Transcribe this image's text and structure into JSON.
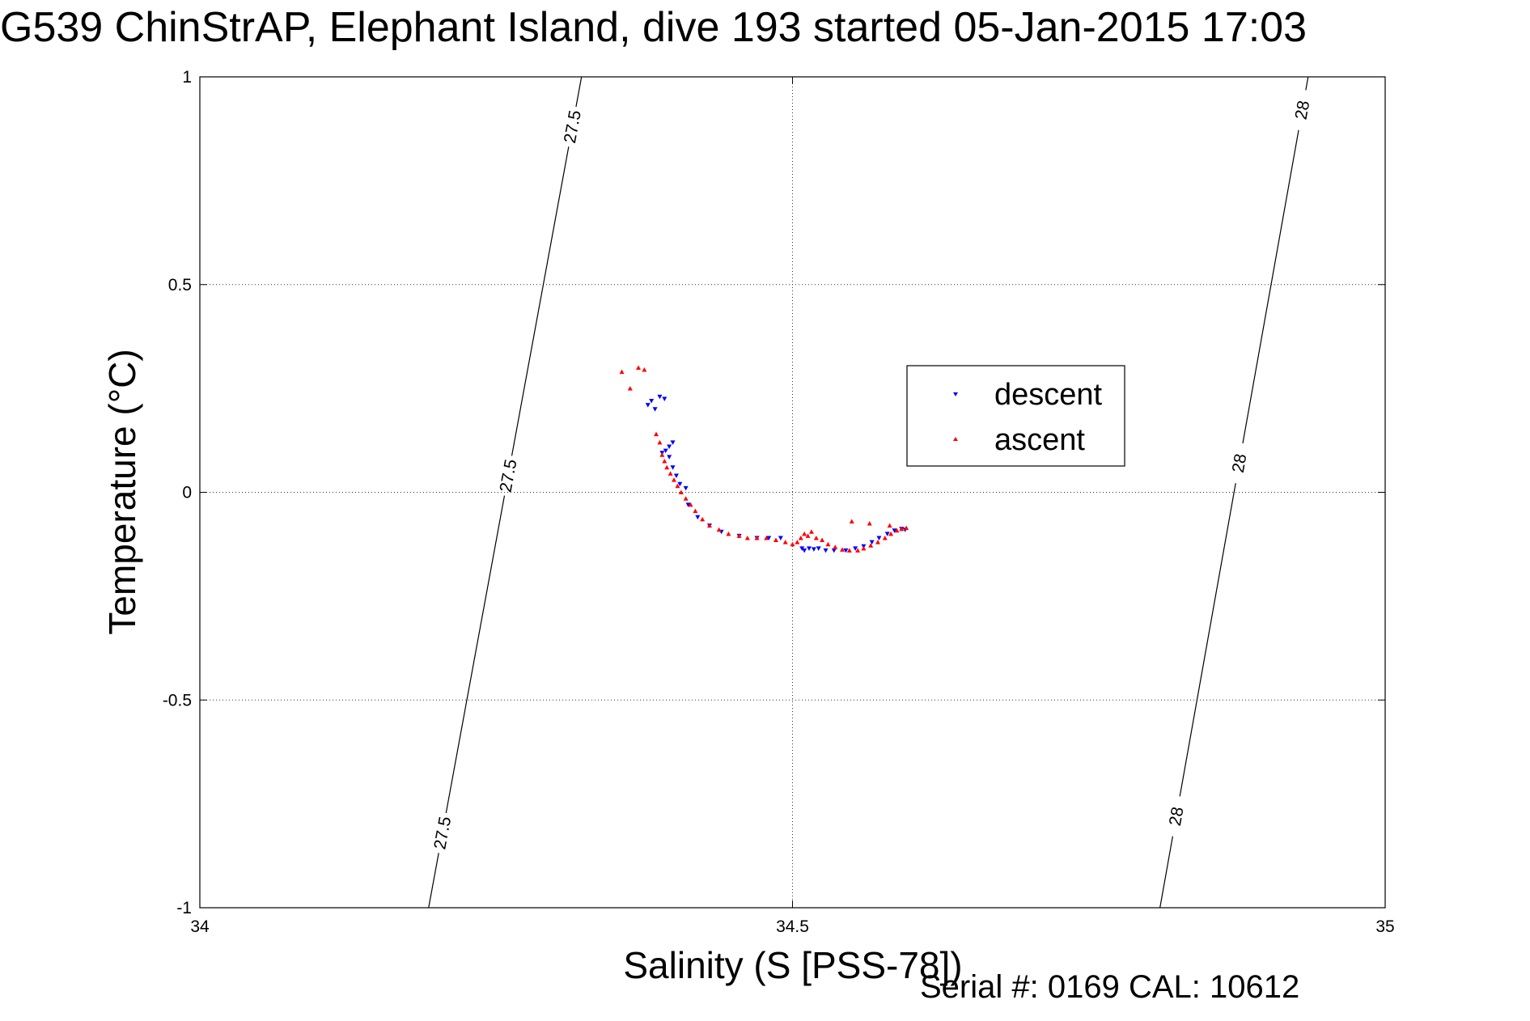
{
  "chart_data": {
    "type": "scatter",
    "title": "G539 ChinStrAP, Elephant Island, dive 193 started 05-Jan-2015 17:03",
    "xlabel": "Salinity (S [PSS-78])",
    "ylabel": "Temperature (°C)",
    "xlim": [
      34,
      35
    ],
    "ylim": [
      -1,
      1
    ],
    "x_ticks": [
      "34",
      "34.5",
      "35"
    ],
    "y_ticks": [
      "-1",
      "-0.5",
      "0",
      "0.5",
      "1"
    ],
    "grid": true,
    "legend_position": "top-right",
    "contours": [
      {
        "label": "27.5",
        "points": [
          [
            34.193,
            -1.0
          ],
          [
            34.322,
            1.0
          ]
        ],
        "label_positions": [
          [
            34.2,
            -0.82
          ],
          [
            34.25,
            0.04
          ],
          [
            34.31,
            0.88
          ]
        ]
      },
      {
        "label": "28",
        "points": [
          [
            34.81,
            -1.0
          ],
          [
            34.935,
            1.0
          ]
        ],
        "label_positions": [
          [
            34.82,
            -0.78
          ],
          [
            34.87,
            0.07
          ],
          [
            34.93,
            0.92
          ]
        ]
      }
    ],
    "series": [
      {
        "name": "descent",
        "color": "#0000ff",
        "marker": "triangle-down",
        "points": [
          [
            34.378,
            0.21
          ],
          [
            34.381,
            0.22
          ],
          [
            34.384,
            0.2
          ],
          [
            34.388,
            0.23
          ],
          [
            34.392,
            0.225
          ],
          [
            34.39,
            0.095
          ],
          [
            34.393,
            0.1
          ],
          [
            34.396,
            0.11
          ],
          [
            34.399,
            0.12
          ],
          [
            34.396,
            0.085
          ],
          [
            34.399,
            0.06
          ],
          [
            34.402,
            0.04
          ],
          [
            34.405,
            0.02
          ],
          [
            34.41,
            0.01
          ],
          [
            34.412,
            -0.03
          ],
          [
            34.42,
            -0.06
          ],
          [
            34.43,
            -0.08
          ],
          [
            34.44,
            -0.095
          ],
          [
            34.455,
            -0.105
          ],
          [
            34.47,
            -0.11
          ],
          [
            34.48,
            -0.11
          ],
          [
            34.49,
            -0.11
          ],
          [
            34.508,
            -0.135
          ],
          [
            34.51,
            -0.14
          ],
          [
            34.514,
            -0.135
          ],
          [
            34.518,
            -0.137
          ],
          [
            34.522,
            -0.135
          ],
          [
            34.528,
            -0.14
          ],
          [
            34.535,
            -0.14
          ],
          [
            34.545,
            -0.14
          ],
          [
            34.553,
            -0.135
          ],
          [
            34.56,
            -0.13
          ],
          [
            34.567,
            -0.12
          ],
          [
            34.573,
            -0.11
          ],
          [
            34.58,
            -0.1
          ],
          [
            34.586,
            -0.092
          ],
          [
            34.592,
            -0.088
          ],
          [
            34.595,
            -0.09
          ]
        ]
      },
      {
        "name": "ascent",
        "color": "#ff0000",
        "marker": "triangle-up",
        "points": [
          [
            34.356,
            0.29
          ],
          [
            34.37,
            0.3
          ],
          [
            34.375,
            0.295
          ],
          [
            34.363,
            0.25
          ],
          [
            34.385,
            0.14
          ],
          [
            34.388,
            0.12
          ],
          [
            34.39,
            0.09
          ],
          [
            34.392,
            0.075
          ],
          [
            34.394,
            0.06
          ],
          [
            34.397,
            0.045
          ],
          [
            34.4,
            0.03
          ],
          [
            34.403,
            0.015
          ],
          [
            34.406,
            0.0
          ],
          [
            34.41,
            -0.015
          ],
          [
            34.414,
            -0.03
          ],
          [
            34.418,
            -0.045
          ],
          [
            34.424,
            -0.065
          ],
          [
            34.43,
            -0.08
          ],
          [
            34.438,
            -0.09
          ],
          [
            34.446,
            -0.1
          ],
          [
            34.455,
            -0.105
          ],
          [
            34.462,
            -0.11
          ],
          [
            34.47,
            -0.11
          ],
          [
            34.478,
            -0.11
          ],
          [
            34.486,
            -0.115
          ],
          [
            34.494,
            -0.12
          ],
          [
            34.5,
            -0.125
          ],
          [
            34.504,
            -0.12
          ],
          [
            34.507,
            -0.11
          ],
          [
            34.51,
            -0.1
          ],
          [
            34.513,
            -0.105
          ],
          [
            34.516,
            -0.095
          ],
          [
            34.52,
            -0.11
          ],
          [
            34.525,
            -0.115
          ],
          [
            34.53,
            -0.125
          ],
          [
            34.536,
            -0.132
          ],
          [
            34.542,
            -0.138
          ],
          [
            34.548,
            -0.14
          ],
          [
            34.555,
            -0.14
          ],
          [
            34.56,
            -0.135
          ],
          [
            34.566,
            -0.128
          ],
          [
            34.572,
            -0.12
          ],
          [
            34.578,
            -0.11
          ],
          [
            34.583,
            -0.1
          ],
          [
            34.588,
            -0.092
          ],
          [
            34.592,
            -0.088
          ],
          [
            34.596,
            -0.086
          ],
          [
            34.55,
            -0.07
          ],
          [
            34.565,
            -0.075
          ],
          [
            34.582,
            -0.08
          ]
        ]
      }
    ],
    "footer": "Serial #: 0169 CAL: 10612"
  }
}
